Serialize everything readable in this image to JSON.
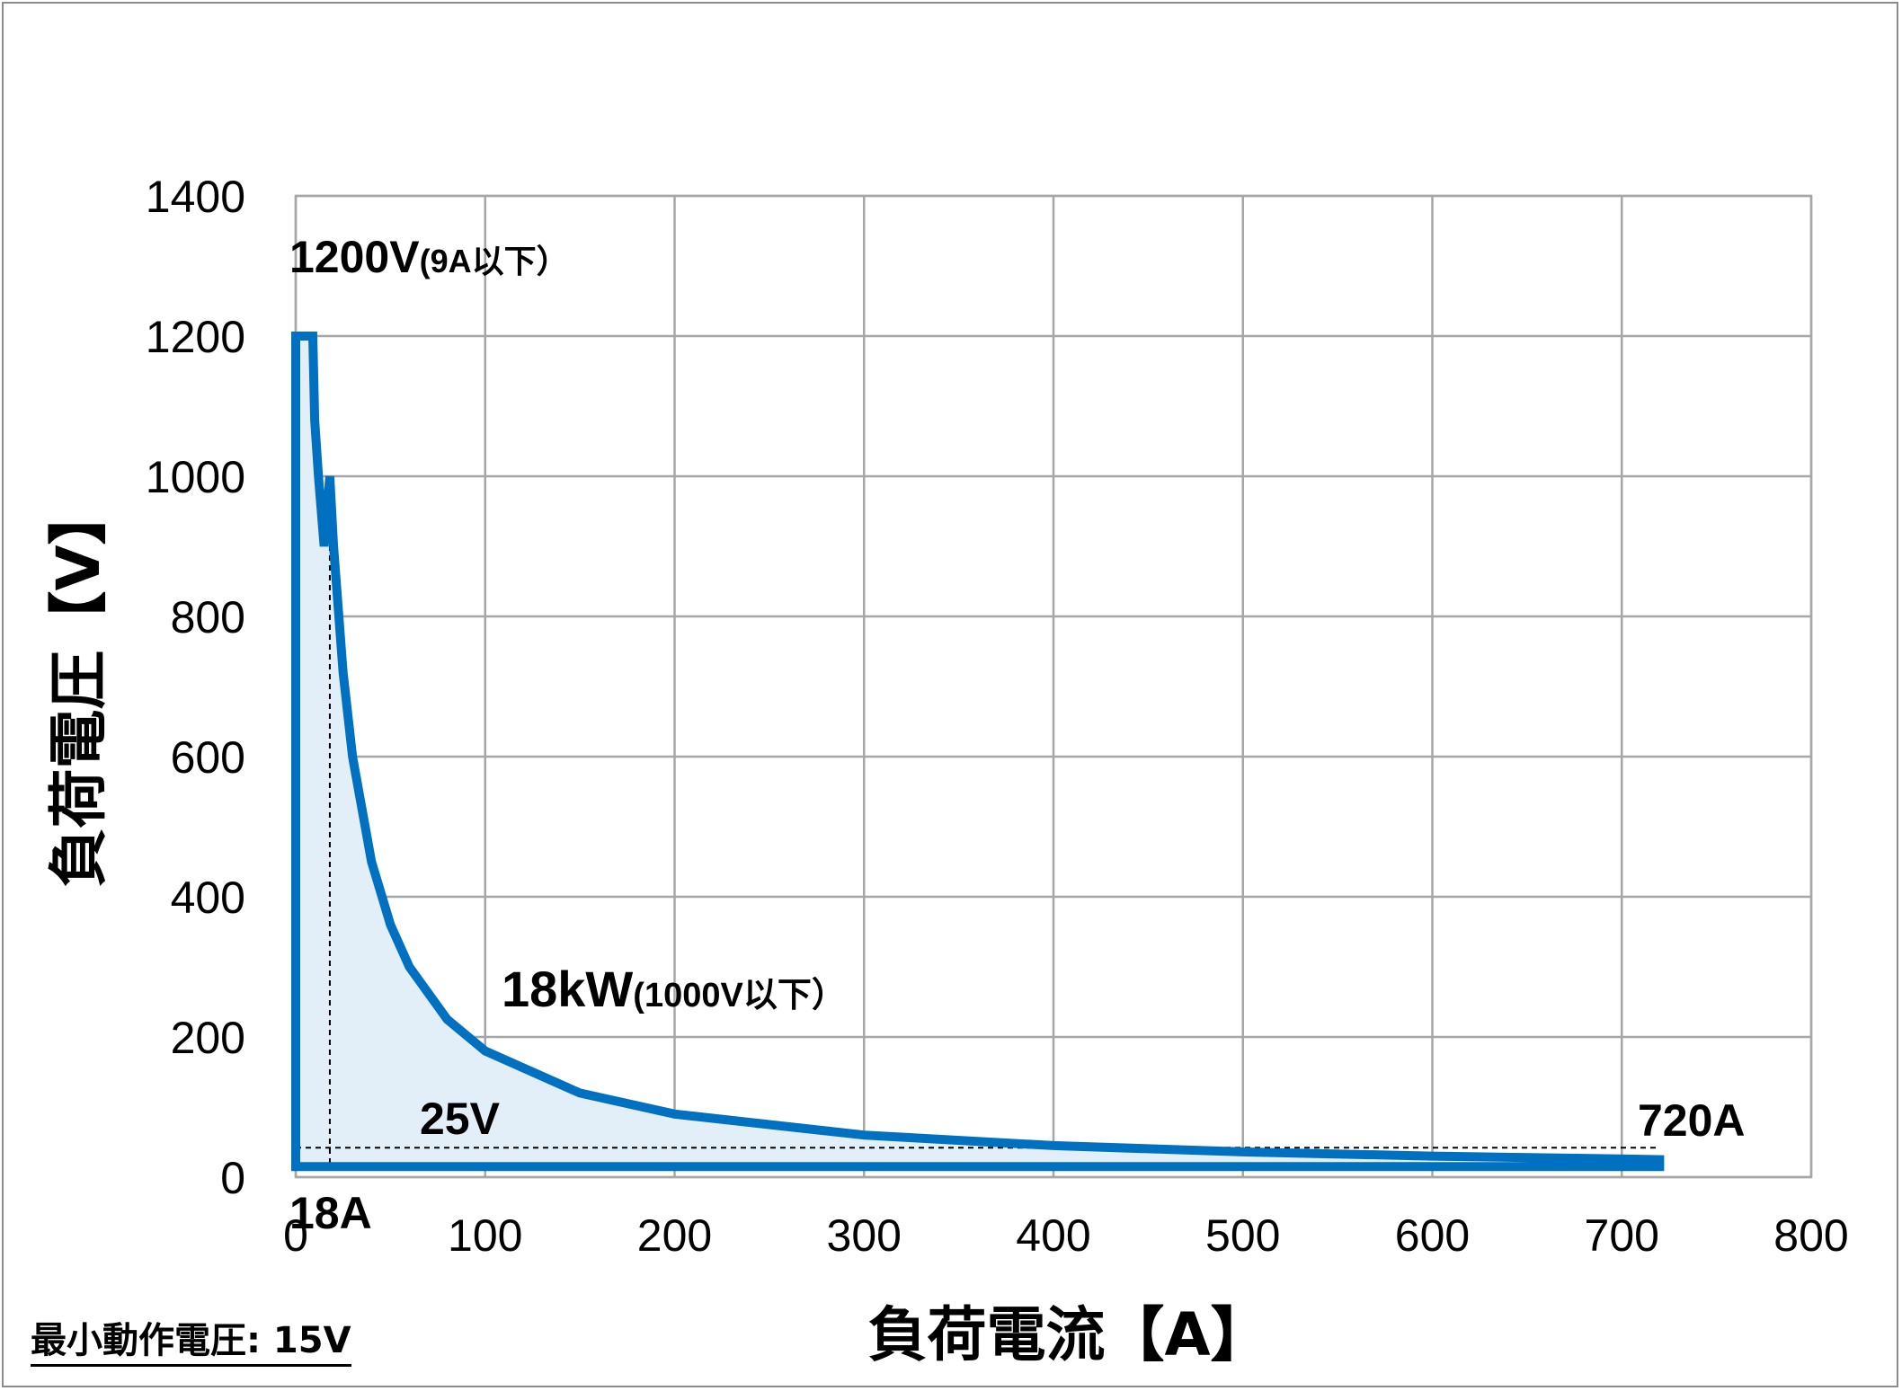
{
  "chart_data": {
    "type": "line",
    "xlabel": "負荷電流【A】",
    "ylabel": "負荷電圧【V】",
    "xlim": [
      0,
      800
    ],
    "ylim": [
      0,
      1400
    ],
    "x_ticks": [
      "0",
      "100",
      "200",
      "300",
      "400",
      "500",
      "600",
      "700",
      "800"
    ],
    "y_ticks": [
      "0",
      "200",
      "400",
      "600",
      "800",
      "1000",
      "1200",
      "1400"
    ],
    "grid": true,
    "fill_under_curve": true,
    "colors": {
      "line": "#0070C0",
      "fill": "#E2EEF8",
      "grid": "#A6A6A6",
      "reference": "#000000"
    },
    "series": [
      {
        "values_desc": "operating boundary",
        "points": [
          [
            0,
            1200
          ],
          [
            9,
            1200
          ],
          [
            10,
            1080
          ],
          [
            12,
            1000
          ],
          [
            15,
            900
          ],
          [
            18,
            1000
          ],
          [
            20,
            900
          ],
          [
            25,
            720
          ],
          [
            30,
            600
          ],
          [
            40,
            450
          ],
          [
            50,
            360
          ],
          [
            60,
            300
          ],
          [
            80,
            225
          ],
          [
            100,
            180
          ],
          [
            150,
            120
          ],
          [
            200,
            90
          ],
          [
            300,
            60
          ],
          [
            400,
            45
          ],
          [
            500,
            36
          ],
          [
            600,
            30
          ],
          [
            700,
            26
          ],
          [
            720,
            25
          ],
          [
            720,
            15
          ],
          [
            0,
            15
          ]
        ]
      }
    ],
    "reference_lines": [
      {
        "axis": "x",
        "value": 18
      },
      {
        "axis": "y",
        "value": 42
      }
    ],
    "annotations": {
      "v_max_main": "1200V",
      "v_max_note": "(9A以下）",
      "power_main": "18kW",
      "power_note": "(1000V以下）",
      "v_25": "25V",
      "a_720": "720A",
      "a_18": "18A"
    }
  },
  "footnote": "最小動作電圧: 15V"
}
